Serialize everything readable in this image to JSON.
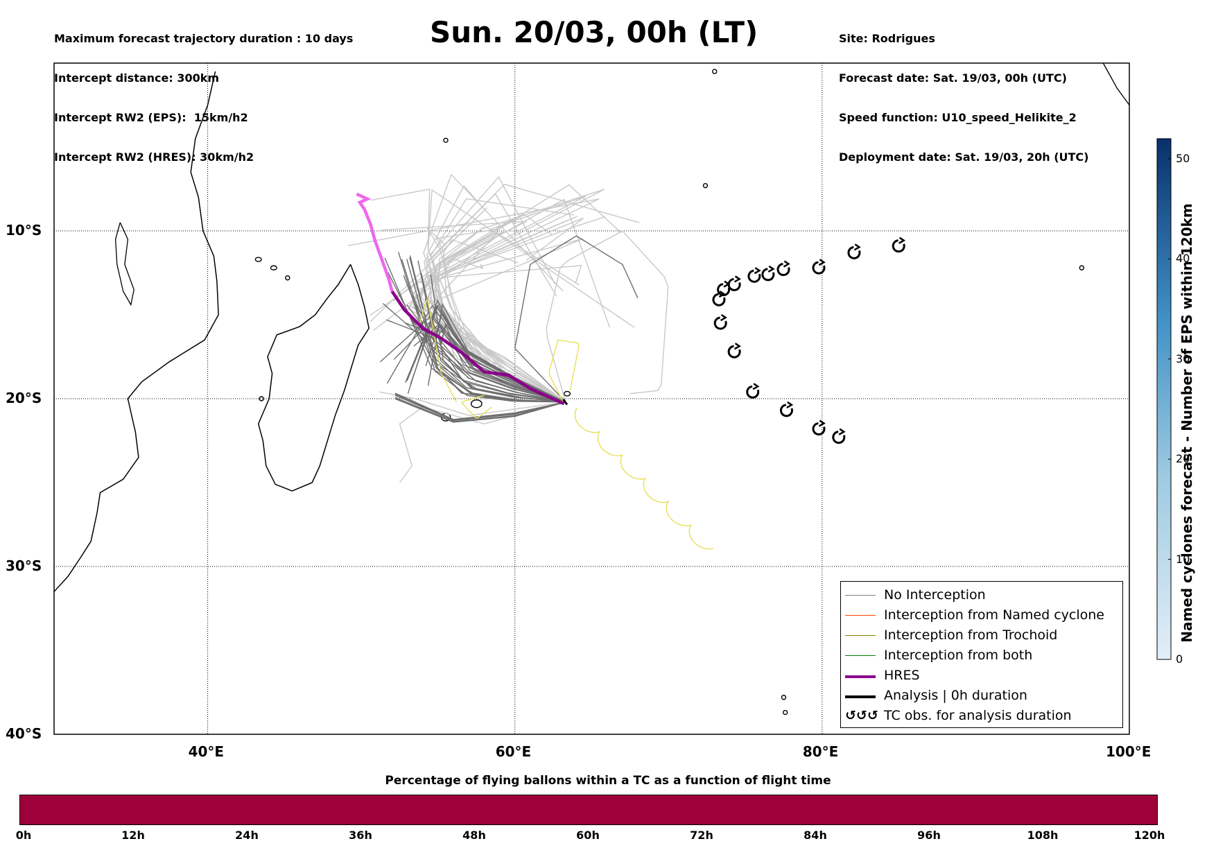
{
  "header_left": [
    "Maximum forecast trajectory duration : 10 days",
    "Intercept distance: 300km",
    "Intercept RW2 (EPS):  15km/h2",
    "Intercept RW2 (HRES): 30km/h2"
  ],
  "header_right": [
    "Site: Rodrigues",
    "Forecast date: Sat. 19/03, 00h (UTC)",
    "Speed function: U10_speed_Helikite_2",
    "Deployment date: Sat. 19/03, 20h (UTC)"
  ],
  "title": "Sun. 20/03, 00h (LT)",
  "map": {
    "lon_range": [
      30,
      100
    ],
    "lat_range": [
      -40,
      0
    ],
    "lat_labels": [
      "10°S",
      "20°S",
      "30°S",
      "40°S"
    ],
    "lon_labels": [
      "40°E",
      "60°E",
      "80°E",
      "100°E"
    ],
    "gridlines": "dotted",
    "colors": {
      "no_interception": "#6e6e6e",
      "no_interception_light": "#c8c8c8",
      "named_cyclone": "#ff4500",
      "trochoid": "#808000",
      "both": "#008000",
      "hres": "#8b008b",
      "hres_light": "#ee66ee",
      "analysis": "#000000",
      "trochoid_track": "#e6e05a"
    }
  },
  "colorbar": {
    "label": "Named cyclones forecast - Number of EPS within 120km",
    "ticks": [
      "0",
      "10",
      "20",
      "30",
      "40",
      "50"
    ],
    "range": [
      0,
      52
    ],
    "colors": [
      "#e3eef9",
      "#08306b"
    ]
  },
  "legend": {
    "items": [
      {
        "label": "No Interception",
        "color": "#808080",
        "style": "thin"
      },
      {
        "label": "Interception from Named cyclone",
        "color": "#ff4500",
        "style": "thin"
      },
      {
        "label": "Interception from Trochoid",
        "color": "#808000",
        "style": "thin"
      },
      {
        "label": "Interception from both",
        "color": "#008000",
        "style": "thin"
      },
      {
        "label": "HRES",
        "color": "#8b008b",
        "style": "thick"
      },
      {
        "label": "Analysis | 0h duration",
        "color": "#000000",
        "style": "thick"
      },
      {
        "label": "TC obs. for analysis duration",
        "color": "#000000",
        "style": "symbol"
      }
    ]
  },
  "tc_observations": [
    {
      "lon": 85.0,
      "lat": -10.9
    },
    {
      "lon": 82.1,
      "lat": -11.3
    },
    {
      "lon": 79.8,
      "lat": -12.2
    },
    {
      "lon": 77.5,
      "lat": -12.3
    },
    {
      "lon": 76.5,
      "lat": -12.6
    },
    {
      "lon": 75.6,
      "lat": -12.7
    },
    {
      "lon": 74.3,
      "lat": -13.2
    },
    {
      "lon": 73.6,
      "lat": -13.5
    },
    {
      "lon": 73.3,
      "lat": -14.1
    },
    {
      "lon": 73.4,
      "lat": -15.5
    },
    {
      "lon": 74.3,
      "lat": -17.2
    },
    {
      "lon": 75.5,
      "lat": -19.6
    },
    {
      "lon": 77.7,
      "lat": -20.7
    },
    {
      "lon": 79.8,
      "lat": -21.8
    },
    {
      "lon": 81.1,
      "lat": -22.3
    }
  ],
  "percentage_bar": {
    "title": "Percentage of flying ballons within a TC as a function of flight time",
    "color": "#9e003a",
    "ticks": [
      "0h",
      "12h",
      "24h",
      "36h",
      "48h",
      "60h",
      "72h",
      "84h",
      "96h",
      "108h",
      "120h"
    ]
  }
}
